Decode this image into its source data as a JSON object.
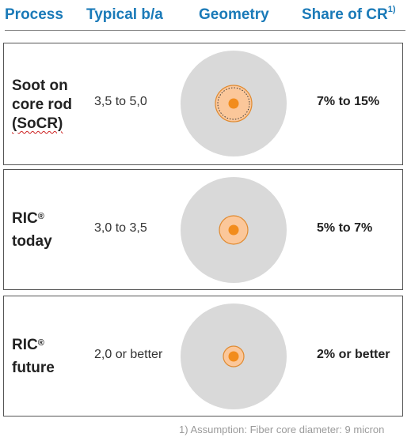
{
  "header": {
    "process": "Process",
    "typical_ba": "Typical b/a",
    "geometry": "Geometry",
    "share": "Share of CR",
    "share_sup": "1)"
  },
  "rows": [
    {
      "process_lines": [
        "Soot on",
        "core rod",
        "(SoCR)"
      ],
      "typical_ba": "3,5 to 5,0",
      "share": "7% to 15%"
    },
    {
      "process_name": "RIC",
      "process_sup": "®",
      "process_line2": "today",
      "typical_ba": "3,0 to 3,5",
      "share": "5% to 7%"
    },
    {
      "process_name": "RIC",
      "process_sup": "®",
      "process_line2": "future",
      "typical_ba": "2,0 or better",
      "share": "2% or better"
    }
  ],
  "colors": {
    "header_blue": "#1a7ab8",
    "cladding_gray": "#d9d9d9",
    "core_rod_peach": "#fbc79a",
    "core_orange": "#f28c1c"
  },
  "footnote": "1) Assumption: Fiber core diameter: 9 micron"
}
